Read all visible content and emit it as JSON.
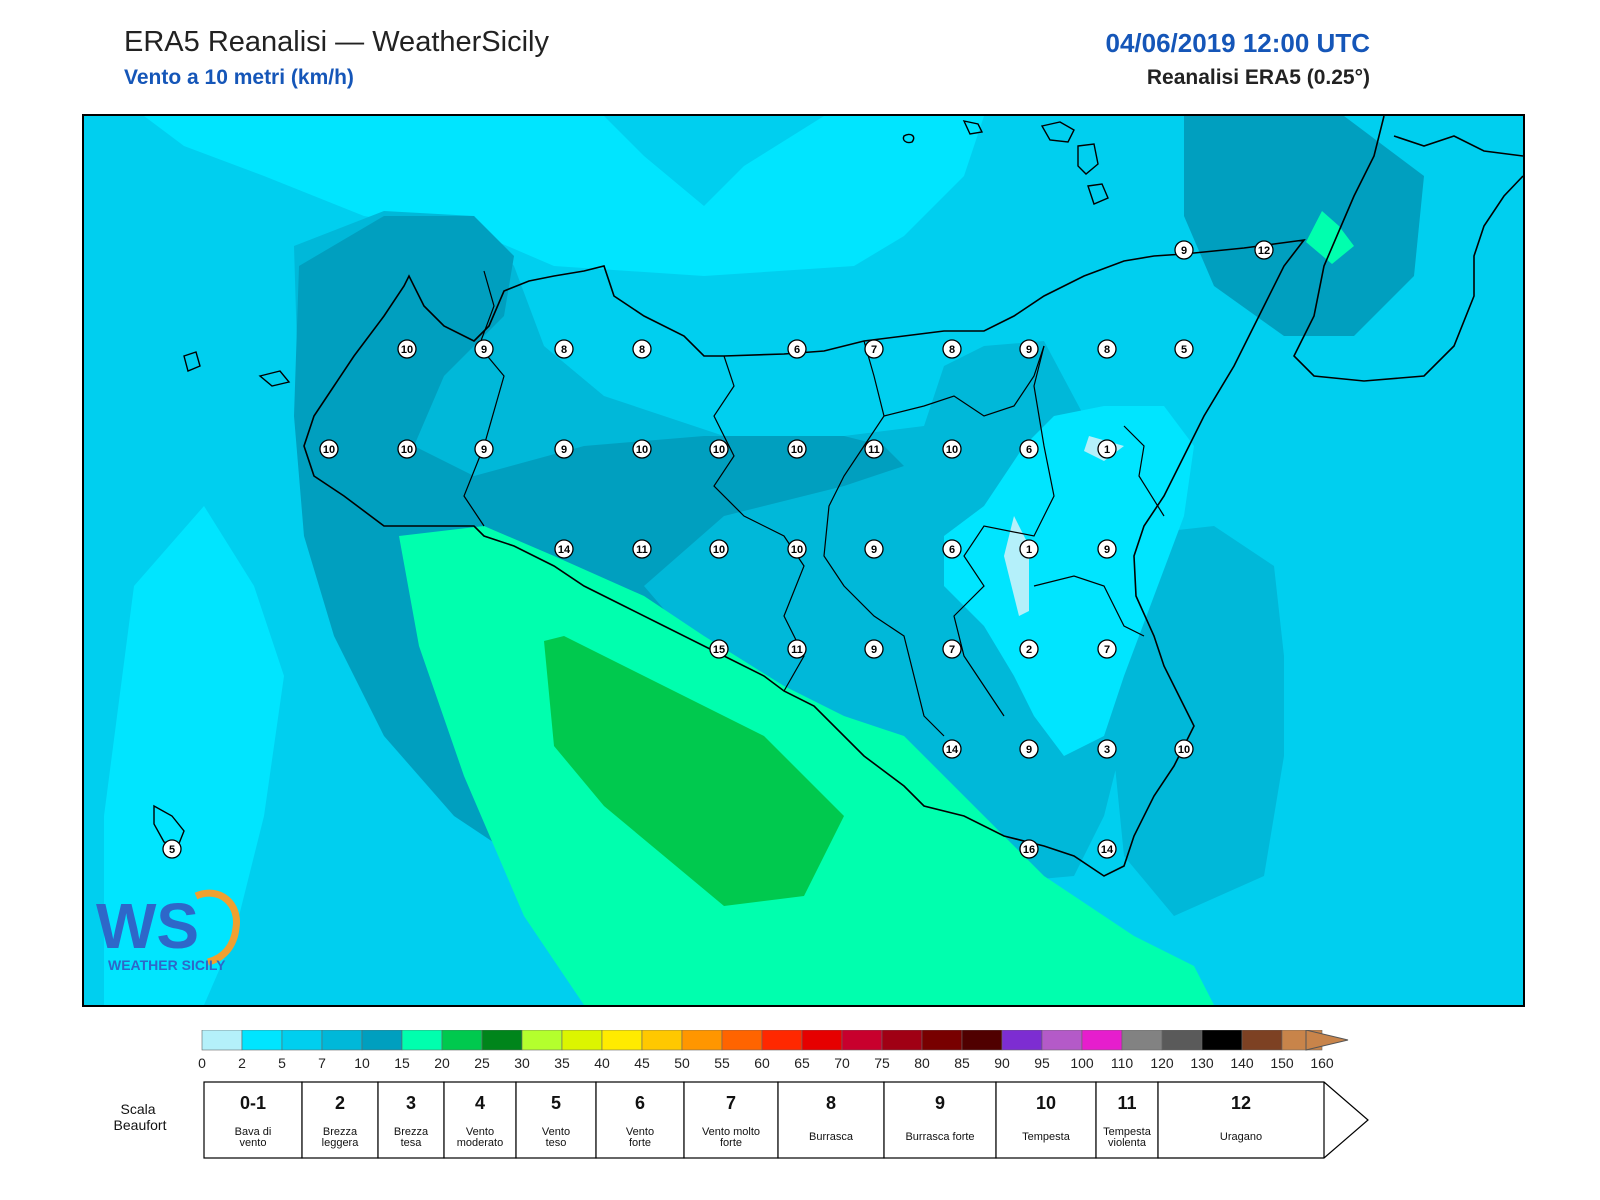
{
  "header": {
    "title": "ERA5 Reanalisi — WeatherSicily",
    "subtitle": "Vento a 10 metri (km/h)",
    "datetime": "04/06/2019 12:00 UTC",
    "model": "Reanalisi ERA5 (0.25°)"
  },
  "logo": {
    "letters": "WS",
    "text": "WEATHER SICILY"
  },
  "stations": [
    {
      "v": "9"
    },
    {
      "v": "12"
    },
    {
      "v": "10"
    },
    {
      "v": "9"
    },
    {
      "v": "8"
    },
    {
      "v": "8"
    },
    {
      "v": "6"
    },
    {
      "v": "7"
    },
    {
      "v": "8"
    },
    {
      "v": "9"
    },
    {
      "v": "8"
    },
    {
      "v": "5"
    },
    {
      "v": "10"
    },
    {
      "v": "10"
    },
    {
      "v": "9"
    },
    {
      "v": "9"
    },
    {
      "v": "10"
    },
    {
      "v": "10"
    },
    {
      "v": "10"
    },
    {
      "v": "11"
    },
    {
      "v": "10"
    },
    {
      "v": "6"
    },
    {
      "v": "1"
    },
    {
      "v": "14"
    },
    {
      "v": "11"
    },
    {
      "v": "10"
    },
    {
      "v": "10"
    },
    {
      "v": "9"
    },
    {
      "v": "6"
    },
    {
      "v": "1"
    },
    {
      "v": "9"
    },
    {
      "v": "15"
    },
    {
      "v": "11"
    },
    {
      "v": "9"
    },
    {
      "v": "7"
    },
    {
      "v": "2"
    },
    {
      "v": "7"
    },
    {
      "v": "14"
    },
    {
      "v": "9"
    },
    {
      "v": "3"
    },
    {
      "v": "10"
    },
    {
      "v": "5"
    },
    {
      "v": "16"
    },
    {
      "v": "14"
    }
  ],
  "colorbar": {
    "ticks": [
      "0",
      "2",
      "5",
      "7",
      "10",
      "15",
      "20",
      "25",
      "30",
      "35",
      "40",
      "45",
      "50",
      "55",
      "60",
      "65",
      "70",
      "75",
      "80",
      "85",
      "90",
      "95",
      "100",
      "110",
      "120",
      "130",
      "140",
      "150",
      "160"
    ],
    "colors": [
      "#b4f0fa",
      "#00e5ff",
      "#00cfef",
      "#00b8d9",
      "#009fbf",
      "#00ffae",
      "#00c94e",
      "#00851b",
      "#b4ff2d",
      "#dcf500",
      "#ffeb00",
      "#ffc800",
      "#ff9600",
      "#ff6400",
      "#ff2800",
      "#e60000",
      "#c8002d",
      "#a00014",
      "#780000",
      "#500000",
      "#7d2dd2",
      "#b45ac8",
      "#e61ecd",
      "#828282",
      "#5a5a5a",
      "#000000",
      "#7d4123",
      "#c8844a"
    ]
  },
  "beaufort": {
    "label": "Scala Beaufort",
    "cells": [
      {
        "num": "0-1",
        "desc": "Bava di vento"
      },
      {
        "num": "2",
        "desc": "Brezza leggera"
      },
      {
        "num": "3",
        "desc": "Brezza tesa"
      },
      {
        "num": "4",
        "desc": "Vento moderato"
      },
      {
        "num": "5",
        "desc": "Vento teso"
      },
      {
        "num": "6",
        "desc": "Vento forte"
      },
      {
        "num": "7",
        "desc": "Vento molto forte"
      },
      {
        "num": "8",
        "desc": "Burrasca"
      },
      {
        "num": "9",
        "desc": "Burrasca forte"
      },
      {
        "num": "10",
        "desc": "Tempesta"
      },
      {
        "num": "11",
        "desc": "Tempesta violenta"
      },
      {
        "num": "12",
        "desc": "Uragano"
      }
    ]
  }
}
